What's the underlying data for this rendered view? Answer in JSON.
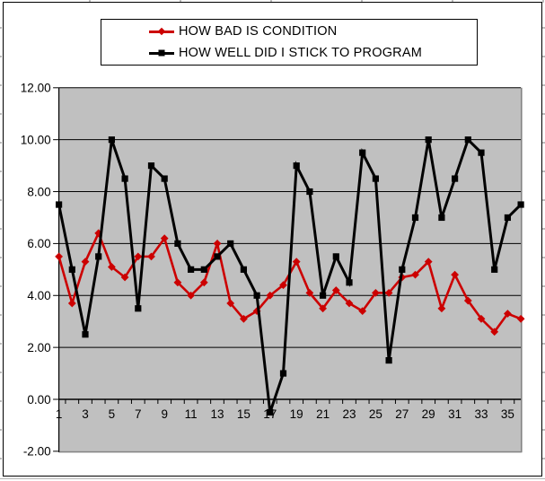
{
  "legend": {
    "entries": [
      {
        "label": "HOW BAD IS CONDITION",
        "color": "#cc0000",
        "marker": "diamond"
      },
      {
        "label": "HOW WELL DID I STICK TO PROGRAM",
        "color": "#000000",
        "marker": "square"
      }
    ]
  },
  "chart_data": {
    "type": "line",
    "title": "",
    "xlabel": "",
    "ylabel": "",
    "x": [
      1,
      2,
      3,
      4,
      5,
      6,
      7,
      8,
      9,
      10,
      11,
      12,
      13,
      14,
      15,
      16,
      17,
      18,
      19,
      20,
      21,
      22,
      23,
      24,
      25,
      26,
      27,
      28,
      29,
      30,
      31,
      32,
      33,
      34,
      35,
      36
    ],
    "series": [
      {
        "name": "HOW BAD IS CONDITION",
        "color": "#cc0000",
        "marker": "diamond",
        "values": [
          5.5,
          3.7,
          5.3,
          6.4,
          5.1,
          4.7,
          5.5,
          5.5,
          6.2,
          4.5,
          4.0,
          4.5,
          6.0,
          3.7,
          3.1,
          3.4,
          4.0,
          4.4,
          5.3,
          4.1,
          3.5,
          4.2,
          3.7,
          3.4,
          4.1,
          4.1,
          4.7,
          4.8,
          5.3,
          3.5,
          4.8,
          3.8,
          3.1,
          2.6,
          3.3,
          3.1
        ]
      },
      {
        "name": "HOW WELL DID I STICK TO PROGRAM",
        "color": "#000000",
        "marker": "square",
        "values": [
          7.5,
          5.0,
          2.5,
          5.5,
          10.0,
          8.5,
          3.5,
          9.0,
          8.5,
          6.0,
          5.0,
          5.0,
          5.5,
          6.0,
          5.0,
          4.0,
          -0.5,
          1.0,
          9.0,
          8.0,
          4.0,
          5.5,
          4.5,
          9.5,
          8.5,
          1.5,
          5.0,
          7.0,
          10.0,
          7.0,
          8.5,
          10.0,
          9.5,
          5.0,
          7.0,
          7.5
        ]
      }
    ],
    "ylim": [
      -2,
      12
    ],
    "ytick_step": 2,
    "yticks": [
      12,
      10,
      8,
      6,
      4,
      2,
      0,
      -2
    ],
    "ytick_labels": [
      "12.00",
      "10.00",
      "8.00",
      "6.00",
      "4.00",
      "2.00",
      "0.00",
      "-2.00"
    ],
    "xtick_labels": [
      "1",
      "3",
      "5",
      "7",
      "9",
      "11",
      "13",
      "15",
      "17",
      "19",
      "21",
      "23",
      "25",
      "27",
      "29",
      "31",
      "33",
      "35"
    ],
    "grid": "horizontal",
    "plot_bg_color": "#c0c0c0",
    "gridline_color": "#000000",
    "plot_shadow_color": "#848484",
    "legend_position": "top"
  }
}
